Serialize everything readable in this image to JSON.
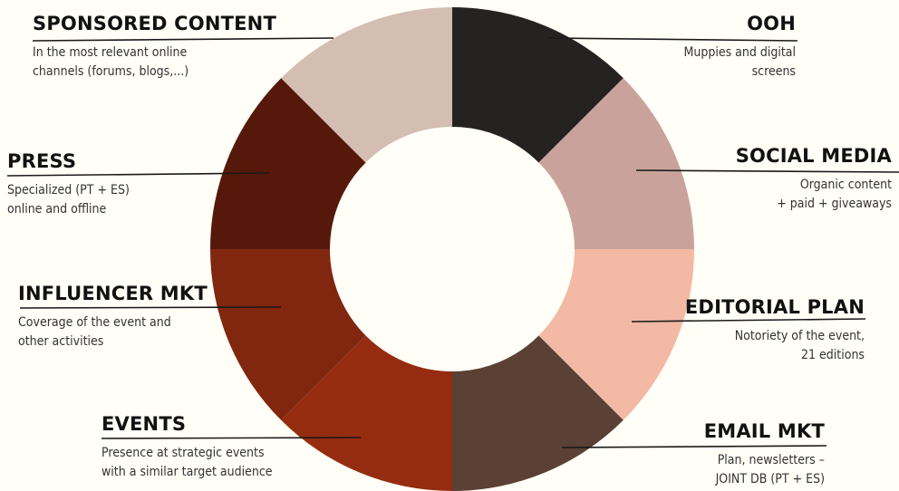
{
  "chart_data": {
    "type": "donut",
    "segments": [
      {
        "label": "OOH",
        "lines": [
          "Muppies and digital",
          "screens"
        ],
        "value": 12.5,
        "color": "#242322"
      },
      {
        "label": "SOCIAL MEDIA",
        "lines": [
          "Organic content",
          "+ paid + giveaways"
        ],
        "value": 12.5,
        "color": "#c9a39b"
      },
      {
        "label": "EDITORIAL PLAN",
        "lines": [
          "Notoriety of the event,",
          "21 editions"
        ],
        "value": 12.5,
        "color": "#f3b9a5"
      },
      {
        "label": "EMAIL MKT",
        "lines": [
          "Plan, newsletters –",
          "JOINT DB (PT + ES)"
        ],
        "value": 12.5,
        "color": "#5a4035"
      },
      {
        "label": "EVENTS",
        "lines": [
          "Presence at strategic events",
          "with a similar target audience"
        ],
        "value": 12.5,
        "color": "#952c10"
      },
      {
        "label": "INFLUENCER MKT",
        "lines": [
          "Coverage of the event and",
          "other activities"
        ],
        "value": 12.5,
        "color": "#81260f"
      },
      {
        "label": "PRESS",
        "lines": [
          "Specialized (PT + ES)",
          "online and offline"
        ],
        "value": 12.5,
        "color": "#56180a"
      },
      {
        "label": "SPONSORED CONTENT",
        "lines": [
          "In the most relevant online",
          "channels (forums, blogs,...)"
        ],
        "value": 12.5,
        "color": "#d4bdb2"
      }
    ]
  }
}
